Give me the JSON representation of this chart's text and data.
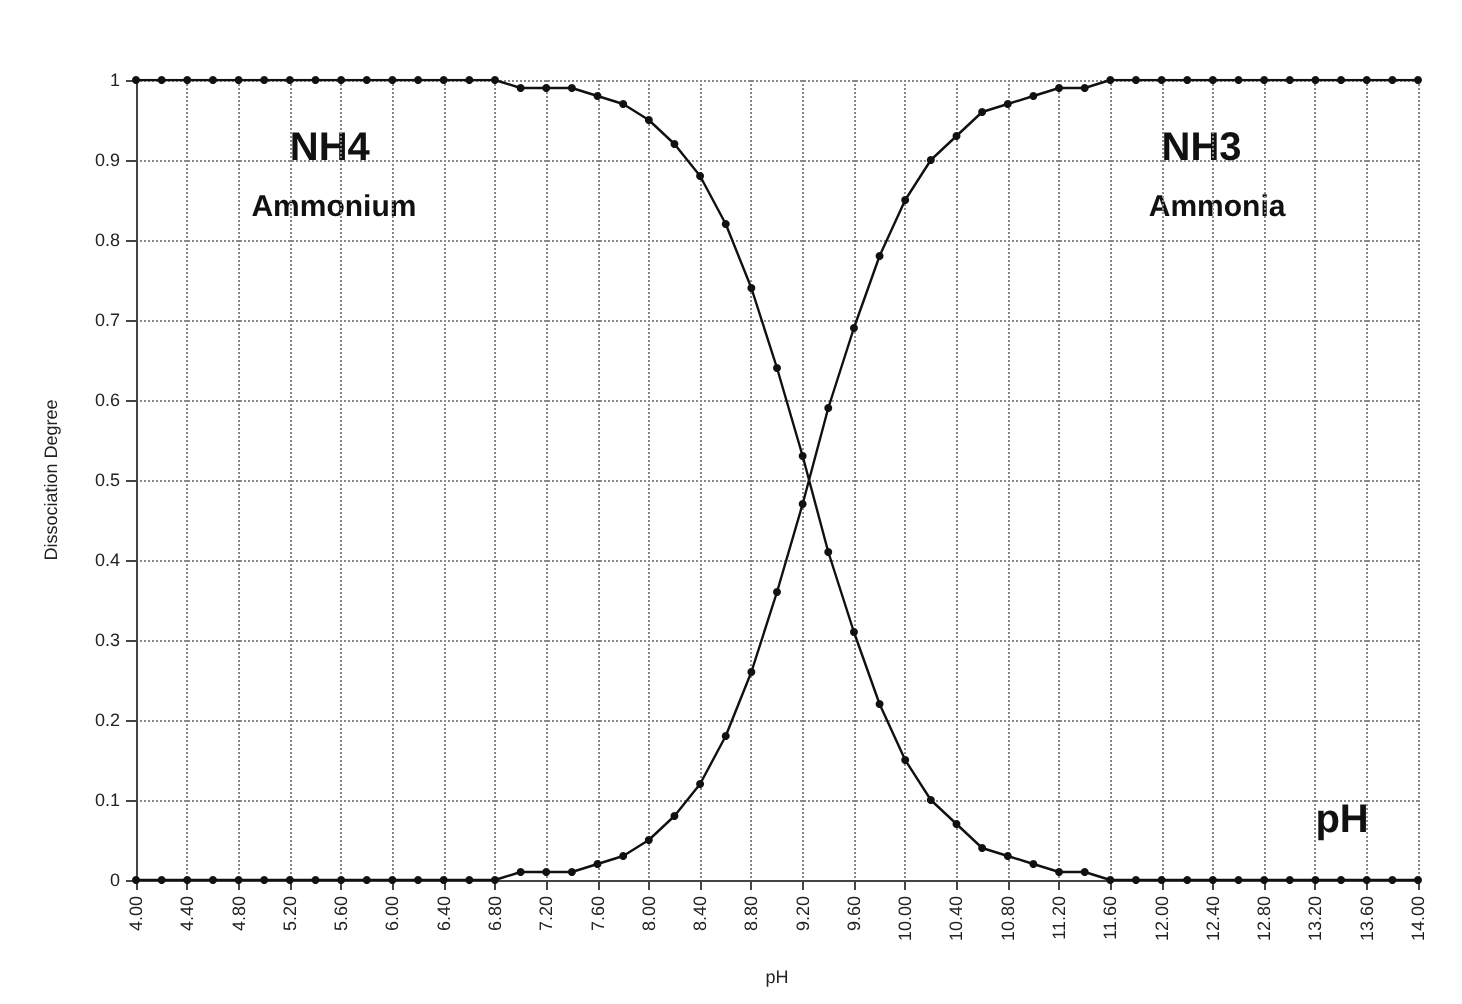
{
  "chart_data": {
    "type": "line",
    "xlabel": "pH",
    "ylabel": "Dissociation Degree",
    "x": [
      4.0,
      4.2,
      4.4,
      4.6,
      4.8,
      5.0,
      5.2,
      5.4,
      5.6,
      5.8,
      6.0,
      6.2,
      6.4,
      6.6,
      6.8,
      7.0,
      7.2,
      7.4,
      7.6,
      7.8,
      8.0,
      8.2,
      8.4,
      8.6,
      8.8,
      9.0,
      9.2,
      9.4,
      9.6,
      9.8,
      10.0,
      10.2,
      10.4,
      10.6,
      10.8,
      11.0,
      11.2,
      11.4,
      11.6,
      11.8,
      12.0,
      12.2,
      12.4,
      12.6,
      12.8,
      13.0,
      13.2,
      13.4,
      13.6,
      13.8,
      14.0
    ],
    "series": [
      {
        "name": "NH4",
        "color": "#111111",
        "values": [
          1,
          1,
          1,
          1,
          1,
          1,
          1,
          1,
          1,
          1,
          1,
          1,
          1,
          1,
          1,
          0.99,
          0.99,
          0.99,
          0.98,
          0.97,
          0.95,
          0.92,
          0.88,
          0.82,
          0.74,
          0.64,
          0.53,
          0.41,
          0.31,
          0.22,
          0.15,
          0.1,
          0.07,
          0.04,
          0.03,
          0.02,
          0.01,
          0.01,
          0,
          0,
          0,
          0,
          0,
          0,
          0,
          0,
          0,
          0,
          0,
          0,
          0
        ]
      },
      {
        "name": "NH3",
        "color": "#111111",
        "values": [
          0,
          0,
          0,
          0,
          0,
          0,
          0,
          0,
          0,
          0,
          0,
          0,
          0,
          0,
          0,
          0.01,
          0.01,
          0.01,
          0.02,
          0.03,
          0.05,
          0.08,
          0.12,
          0.18,
          0.26,
          0.36,
          0.47,
          0.59,
          0.69,
          0.78,
          0.85,
          0.9,
          0.93,
          0.96,
          0.97,
          0.98,
          0.99,
          0.99,
          1,
          1,
          1,
          1,
          1,
          1,
          1,
          1,
          1,
          1,
          1,
          1,
          1
        ]
      }
    ],
    "annotations": [
      "Ammonium",
      "Ammonia",
      "pH"
    ],
    "xlim": [
      4,
      14
    ],
    "xticks": [
      {
        "value": 4,
        "label": "4.00"
      },
      {
        "value": 4.4,
        "label": "4.40"
      },
      {
        "value": 4.8,
        "label": "4.80"
      },
      {
        "value": 5.2,
        "label": "5.20"
      },
      {
        "value": 5.6,
        "label": "5.60"
      },
      {
        "value": 6,
        "label": "6.00"
      },
      {
        "value": 6.4,
        "label": "6.40"
      },
      {
        "value": 6.8,
        "label": "6.80"
      },
      {
        "value": 7.2,
        "label": "7.20"
      },
      {
        "value": 7.6,
        "label": "7.60"
      },
      {
        "value": 8,
        "label": "8.00"
      },
      {
        "value": 8.4,
        "label": "8.40"
      },
      {
        "value": 8.8,
        "label": "8.80"
      },
      {
        "value": 9.2,
        "label": "9.20"
      },
      {
        "value": 9.6,
        "label": "9.60"
      },
      {
        "value": 10,
        "label": "10.00"
      },
      {
        "value": 10.4,
        "label": "10.40"
      },
      {
        "value": 10.8,
        "label": "10.80"
      },
      {
        "value": 11.2,
        "label": "11.20"
      },
      {
        "value": 11.6,
        "label": "11.60"
      },
      {
        "value": 12,
        "label": "12.00"
      },
      {
        "value": 12.4,
        "label": "12.40"
      },
      {
        "value": 12.8,
        "label": "12.80"
      },
      {
        "value": 13.2,
        "label": "13.20"
      },
      {
        "value": 13.6,
        "label": "13.60"
      },
      {
        "value": 14,
        "label": "14.00"
      }
    ],
    "ylim": [
      0,
      1
    ],
    "yticks": [
      0,
      0.1,
      0.2,
      0.3,
      0.4,
      0.5,
      0.6,
      0.7,
      0.8,
      0.9,
      1
    ],
    "grid": true,
    "legend": false,
    "marker": "circle",
    "line_style": "solid"
  }
}
